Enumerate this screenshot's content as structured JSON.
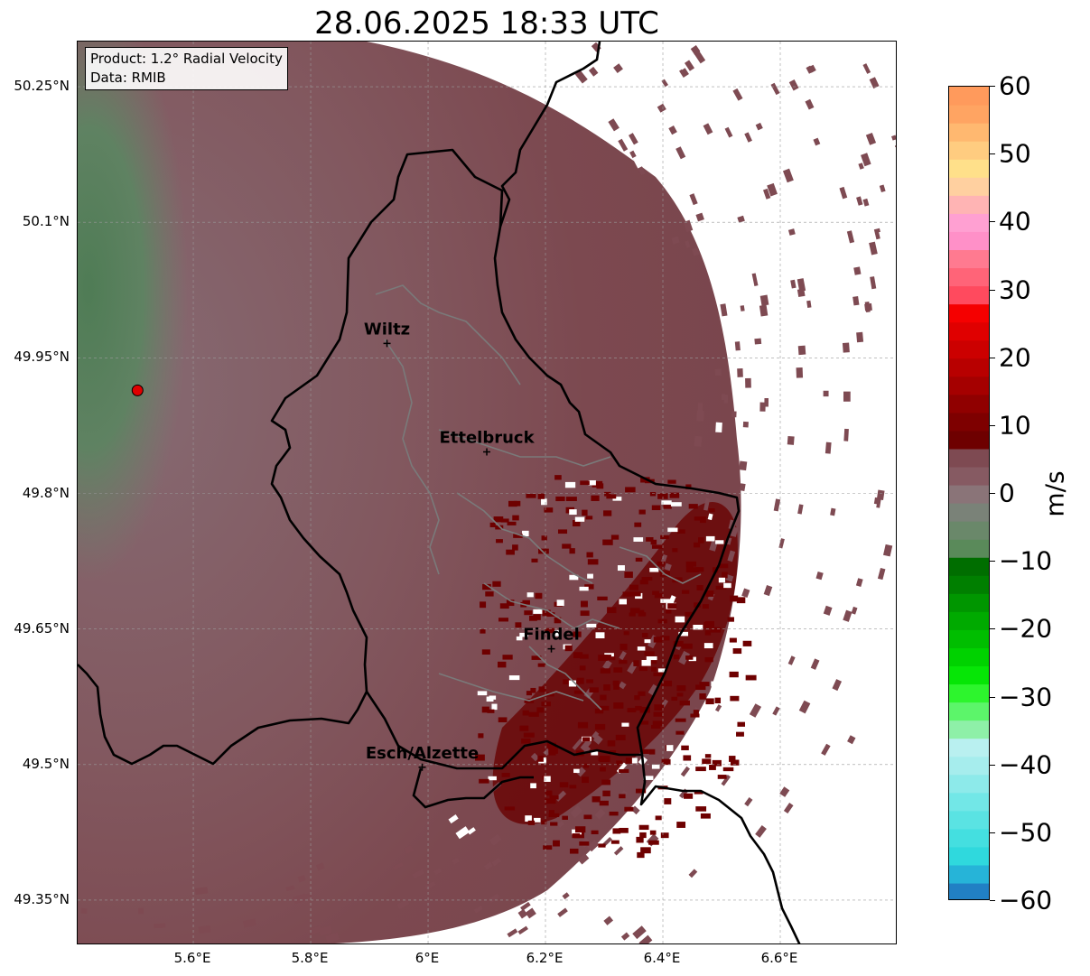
{
  "title": "28.06.2025 18:33 UTC",
  "info": {
    "product": "Product: 1.2° Radial Velocity",
    "data": "Data: RMIB"
  },
  "lat_labels": [
    "50.25°N",
    "50.1°N",
    "49.95°N",
    "49.8°N",
    "49.65°N",
    "49.5°N",
    "49.35°N"
  ],
  "lon_labels": [
    "5.6°E",
    "5.8°E",
    "6°E",
    "6.2°E",
    "6.4°E",
    "6.6°E"
  ],
  "cities": [
    {
      "name": "Wiltz",
      "lon": 5.93,
      "lat": 49.966
    },
    {
      "name": "Ettelbruck",
      "lon": 6.1,
      "lat": 49.846
    },
    {
      "name": "Findel",
      "lon": 6.21,
      "lat": 49.628
    },
    {
      "name": "Esch/Alzette",
      "lon": 5.99,
      "lat": 49.497
    }
  ],
  "radar_site": {
    "lon": 5.505,
    "lat": 49.914
  },
  "colorbar": {
    "unit": "m/s",
    "ticks": [
      "60",
      "50",
      "40",
      "30",
      "20",
      "10",
      "0",
      "−10",
      "−20",
      "−30",
      "−40",
      "−50",
      "−60"
    ],
    "colors": [
      "#2180c4",
      "#26b4d8",
      "#2fd9dd",
      "#44dfe0",
      "#5ae3e3",
      "#72e7e7",
      "#8deaea",
      "#a6eded",
      "#b9f0f0",
      "#8ef0a8",
      "#5cf56a",
      "#2df52d",
      "#06e606",
      "#00d200",
      "#00be00",
      "#00aa00",
      "#009600",
      "#007f00",
      "#006e00",
      "#5a8a5a",
      "#6a886a",
      "#7a8278",
      "#8a7478",
      "#865a62",
      "#7e4a52",
      "#6e0000",
      "#7e0000",
      "#900000",
      "#a50000",
      "#b80000",
      "#cc0000",
      "#e00000",
      "#f50000",
      "#ff4a5e",
      "#ff6478",
      "#ff7a90",
      "#ff90c8",
      "#ffa0d2",
      "#ffb4b4",
      "#ffd0a0",
      "#ffe08a",
      "#ffcc80",
      "#ffb870",
      "#ffa462",
      "#ff9a5c"
    ],
    "accent_colors": {
      "background_velocity": "#7e4a52",
      "inbound": "#6e0000",
      "outbound_green": "#5a8a5a"
    }
  }
}
